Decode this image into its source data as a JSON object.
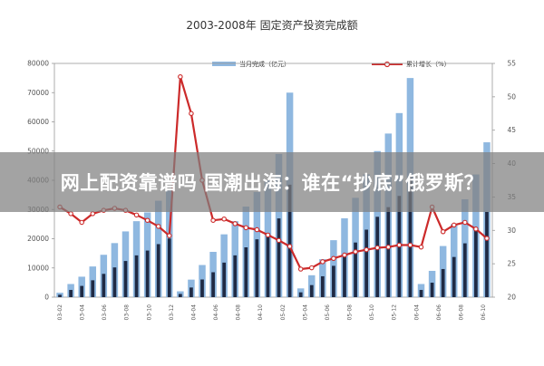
{
  "banner": {
    "text": "网上配资靠谱吗 国潮出海：谁在“抄底”俄罗斯？"
  },
  "colors": {
    "bar_light": "#8fb8e0",
    "bar_dark": "#1f2a44",
    "line": "#cc2a2a"
  },
  "chart_data": {
    "type": "bar",
    "title": "2003-2008年 固定资产投资完成额",
    "legend": [
      {
        "label": "当月完成（亿元）",
        "kind": "bar"
      },
      {
        "label": "累计增长（%）",
        "kind": "line"
      }
    ],
    "legend_position": "top",
    "y_left": {
      "ticks": [
        "0",
        "10000",
        "20000",
        "30000",
        "40000",
        "50000",
        "60000",
        "70000",
        "80000"
      ],
      "lim": [
        0,
        80000
      ]
    },
    "y_right": {
      "ticks": [
        "20",
        "25",
        "30",
        "35",
        "40",
        "45",
        "50",
        "55"
      ],
      "lim": [
        20,
        55
      ]
    },
    "x_labels": [
      "03-02",
      "03-04",
      "03-06",
      "03-08",
      "03-10",
      "03-12",
      "04-04",
      "04-06",
      "04-08",
      "04-10",
      "05-02",
      "05-04",
      "05-06",
      "05-08",
      "05-10",
      "05-12",
      "06-04",
      "06-06",
      "06-08",
      "06-10"
    ],
    "series": [
      {
        "name": "当月完成（亿元）",
        "kind": "bar",
        "values": [
          1500,
          4500,
          7000,
          10500,
          14500,
          18500,
          22500,
          26000,
          29000,
          33000,
          36500,
          2000,
          6000,
          11000,
          15500,
          21500,
          26000,
          31000,
          36000,
          40000,
          49000,
          70000,
          3000,
          7500,
          13000,
          19500,
          27000,
          34000,
          42000,
          50000,
          56000,
          63000,
          75000,
          4500,
          9000,
          17500,
          25000,
          33500,
          42000,
          53000
        ]
      },
      {
        "name": "累计增长（%）",
        "kind": "line",
        "values": [
          33.5,
          32.5,
          31.2,
          32.5,
          33.0,
          33.3,
          33.0,
          32.3,
          31.5,
          30.6,
          29.2,
          53.0,
          47.5,
          37.5,
          31.5,
          31.7,
          31.0,
          30.4,
          30.1,
          29.3,
          28.5,
          27.6,
          24.2,
          24.4,
          25.3,
          25.8,
          26.3,
          26.8,
          27.1,
          27.4,
          27.5,
          27.8,
          27.8,
          27.5,
          33.5,
          29.8,
          30.8,
          31.2,
          30.2,
          28.8
        ]
      }
    ]
  }
}
